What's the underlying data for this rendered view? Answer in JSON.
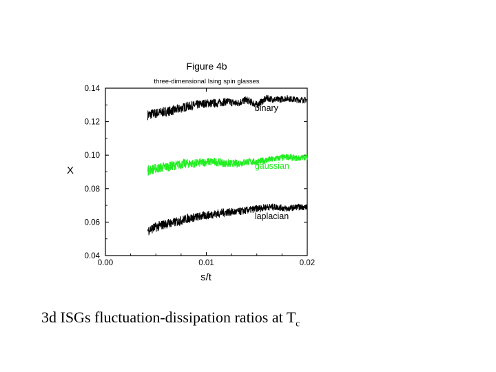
{
  "caption": {
    "text": "3d ISGs fluctuation-dissipation ratios at T",
    "subscript": "c"
  },
  "chart_data": {
    "type": "line",
    "title": "Figure 4b",
    "subtitle": "three-dimensional Ising spin glasses",
    "xlabel": "s/t",
    "ylabel": "X",
    "xlim": [
      0,
      0.02
    ],
    "ylim": [
      0.04,
      0.14
    ],
    "xticks": [
      0,
      0.01,
      0.02
    ],
    "xtick_labels": [
      "0.00",
      "0.01",
      "0.02"
    ],
    "yticks": [
      0.04,
      0.06,
      0.08,
      0.1,
      0.12,
      0.14
    ],
    "ytick_labels": [
      "0.04",
      "0.06",
      "0.08",
      "0.10",
      "0.12",
      "0.14"
    ],
    "grid": false,
    "series": [
      {
        "name": "binary",
        "color": "#000000",
        "x": [
          0.0042,
          0.005,
          0.006,
          0.007,
          0.008,
          0.009,
          0.01,
          0.011,
          0.012,
          0.013,
          0.014,
          0.015,
          0.016,
          0.017,
          0.018,
          0.019,
          0.02
        ],
        "y": [
          0.124,
          0.125,
          0.126,
          0.127,
          0.129,
          0.13,
          0.131,
          0.131,
          0.132,
          0.131,
          0.133,
          0.13,
          0.134,
          0.133,
          0.134,
          0.133,
          0.133
        ]
      },
      {
        "name": "gaussian",
        "color": "#22ee22",
        "x": [
          0.0042,
          0.005,
          0.006,
          0.007,
          0.008,
          0.009,
          0.01,
          0.011,
          0.012,
          0.013,
          0.014,
          0.015,
          0.016,
          0.017,
          0.018,
          0.019,
          0.02
        ],
        "y": [
          0.091,
          0.092,
          0.093,
          0.094,
          0.095,
          0.095,
          0.096,
          0.096,
          0.095,
          0.095,
          0.096,
          0.096,
          0.097,
          0.098,
          0.099,
          0.098,
          0.099
        ]
      },
      {
        "name": "laplacian",
        "color": "#000000",
        "x": [
          0.0042,
          0.005,
          0.006,
          0.007,
          0.008,
          0.009,
          0.01,
          0.011,
          0.012,
          0.013,
          0.014,
          0.015,
          0.016,
          0.017,
          0.018,
          0.019,
          0.02
        ],
        "y": [
          0.055,
          0.057,
          0.059,
          0.06,
          0.062,
          0.063,
          0.064,
          0.065,
          0.066,
          0.066,
          0.067,
          0.068,
          0.069,
          0.069,
          0.068,
          0.069,
          0.069
        ]
      }
    ]
  }
}
